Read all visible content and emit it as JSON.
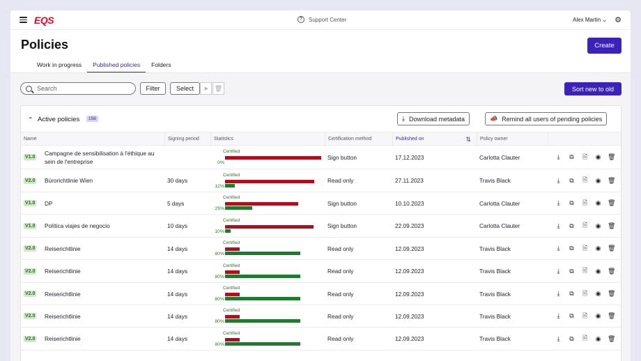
{
  "app": {
    "logo": "EQS",
    "support_label": "Support Center",
    "user_name": "Alex Martin"
  },
  "page": {
    "title": "Policies",
    "create_label": "Create",
    "tabs": [
      {
        "label": "Work in progress",
        "active": false
      },
      {
        "label": "Published policies",
        "active": true
      },
      {
        "label": "Folders",
        "active": false
      }
    ]
  },
  "toolbar": {
    "search_placeholder": "Search",
    "filter_label": "Filter",
    "select_label": "Select",
    "sort_label": "Sort new to old"
  },
  "card": {
    "title": "Active policies",
    "count": "156",
    "download_label": "Download metadata",
    "remind_label": "Remind all users of pending policies"
  },
  "table": {
    "headers": {
      "name": "Name",
      "signing_period": "Signing period",
      "statistics": "Statistics",
      "certification_method": "Certification method",
      "published_on": "Published on",
      "policy_owner": "Policy owner"
    },
    "certified_label": "Certified",
    "rows": [
      {
        "version": "V1.0",
        "name": "Campagne de sensibilisation à l'éthique au sein de l'entreprise",
        "period": "",
        "pct": "0%",
        "red": 1.0,
        "green": 0.0,
        "method": "Sign button",
        "date": "17.12.2023",
        "owner": "Carlotta Clauter"
      },
      {
        "version": "V2.0",
        "name": "Bürorichtlinie Wien",
        "period": "30 days",
        "pct": "12%",
        "red": 0.93,
        "green": 0.1,
        "method": "Read only",
        "date": "27.11.2023",
        "owner": "Travis Black"
      },
      {
        "version": "V1.0",
        "name": "DP",
        "period": "5 days",
        "pct": "25%",
        "red": 0.76,
        "green": 0.28,
        "method": "Sign button",
        "date": "10.10.2023",
        "owner": "Carlotta Clauter"
      },
      {
        "version": "V1.0",
        "name": "Política viajes de negocio",
        "period": "10 days",
        "pct": "10%",
        "red": 0.92,
        "green": 0.06,
        "method": "Sign button",
        "date": "22.09.2023",
        "owner": "Carlotta Clauter"
      },
      {
        "version": "V2.0",
        "name": "Reiserichtlinie",
        "period": "14 days",
        "pct": "80%",
        "red": 0.15,
        "green": 0.78,
        "method": "Read only",
        "date": "12.09.2023",
        "owner": "Travis Black"
      },
      {
        "version": "V2.0",
        "name": "Reiserichtlinie",
        "period": "14 days",
        "pct": "80%",
        "red": 0.15,
        "green": 0.78,
        "method": "Read only",
        "date": "12.09.2023",
        "owner": "Travis Black"
      },
      {
        "version": "V2.0",
        "name": "Reiserichtlinie",
        "period": "14 days",
        "pct": "80%",
        "red": 0.15,
        "green": 0.78,
        "method": "Read only",
        "date": "12.09.2023",
        "owner": "Travis Black"
      },
      {
        "version": "V2.0",
        "name": "Reiserichtlinie",
        "period": "14 days",
        "pct": "80%",
        "red": 0.15,
        "green": 0.78,
        "method": "Read only",
        "date": "12.09.2023",
        "owner": "Travis Black"
      },
      {
        "version": "V2.0",
        "name": "Reiserichtlinie",
        "period": "14 days",
        "pct": "80%",
        "red": 0.15,
        "green": 0.78,
        "method": "Read only",
        "date": "12.09.2023",
        "owner": "Travis Black"
      }
    ]
  },
  "colors": {
    "accent": "#3b22b8",
    "brand": "#e4002b",
    "bar_red": "#b20d1d",
    "bar_green": "#1e7d2c"
  },
  "icons": [
    "menu-icon",
    "help-circle-icon",
    "chevron-down-icon",
    "gear-icon",
    "search-icon",
    "send-icon",
    "trash-icon",
    "download-icon",
    "megaphone-icon",
    "sort-icon",
    "copy-icon",
    "document-icon",
    "eye-icon"
  ]
}
